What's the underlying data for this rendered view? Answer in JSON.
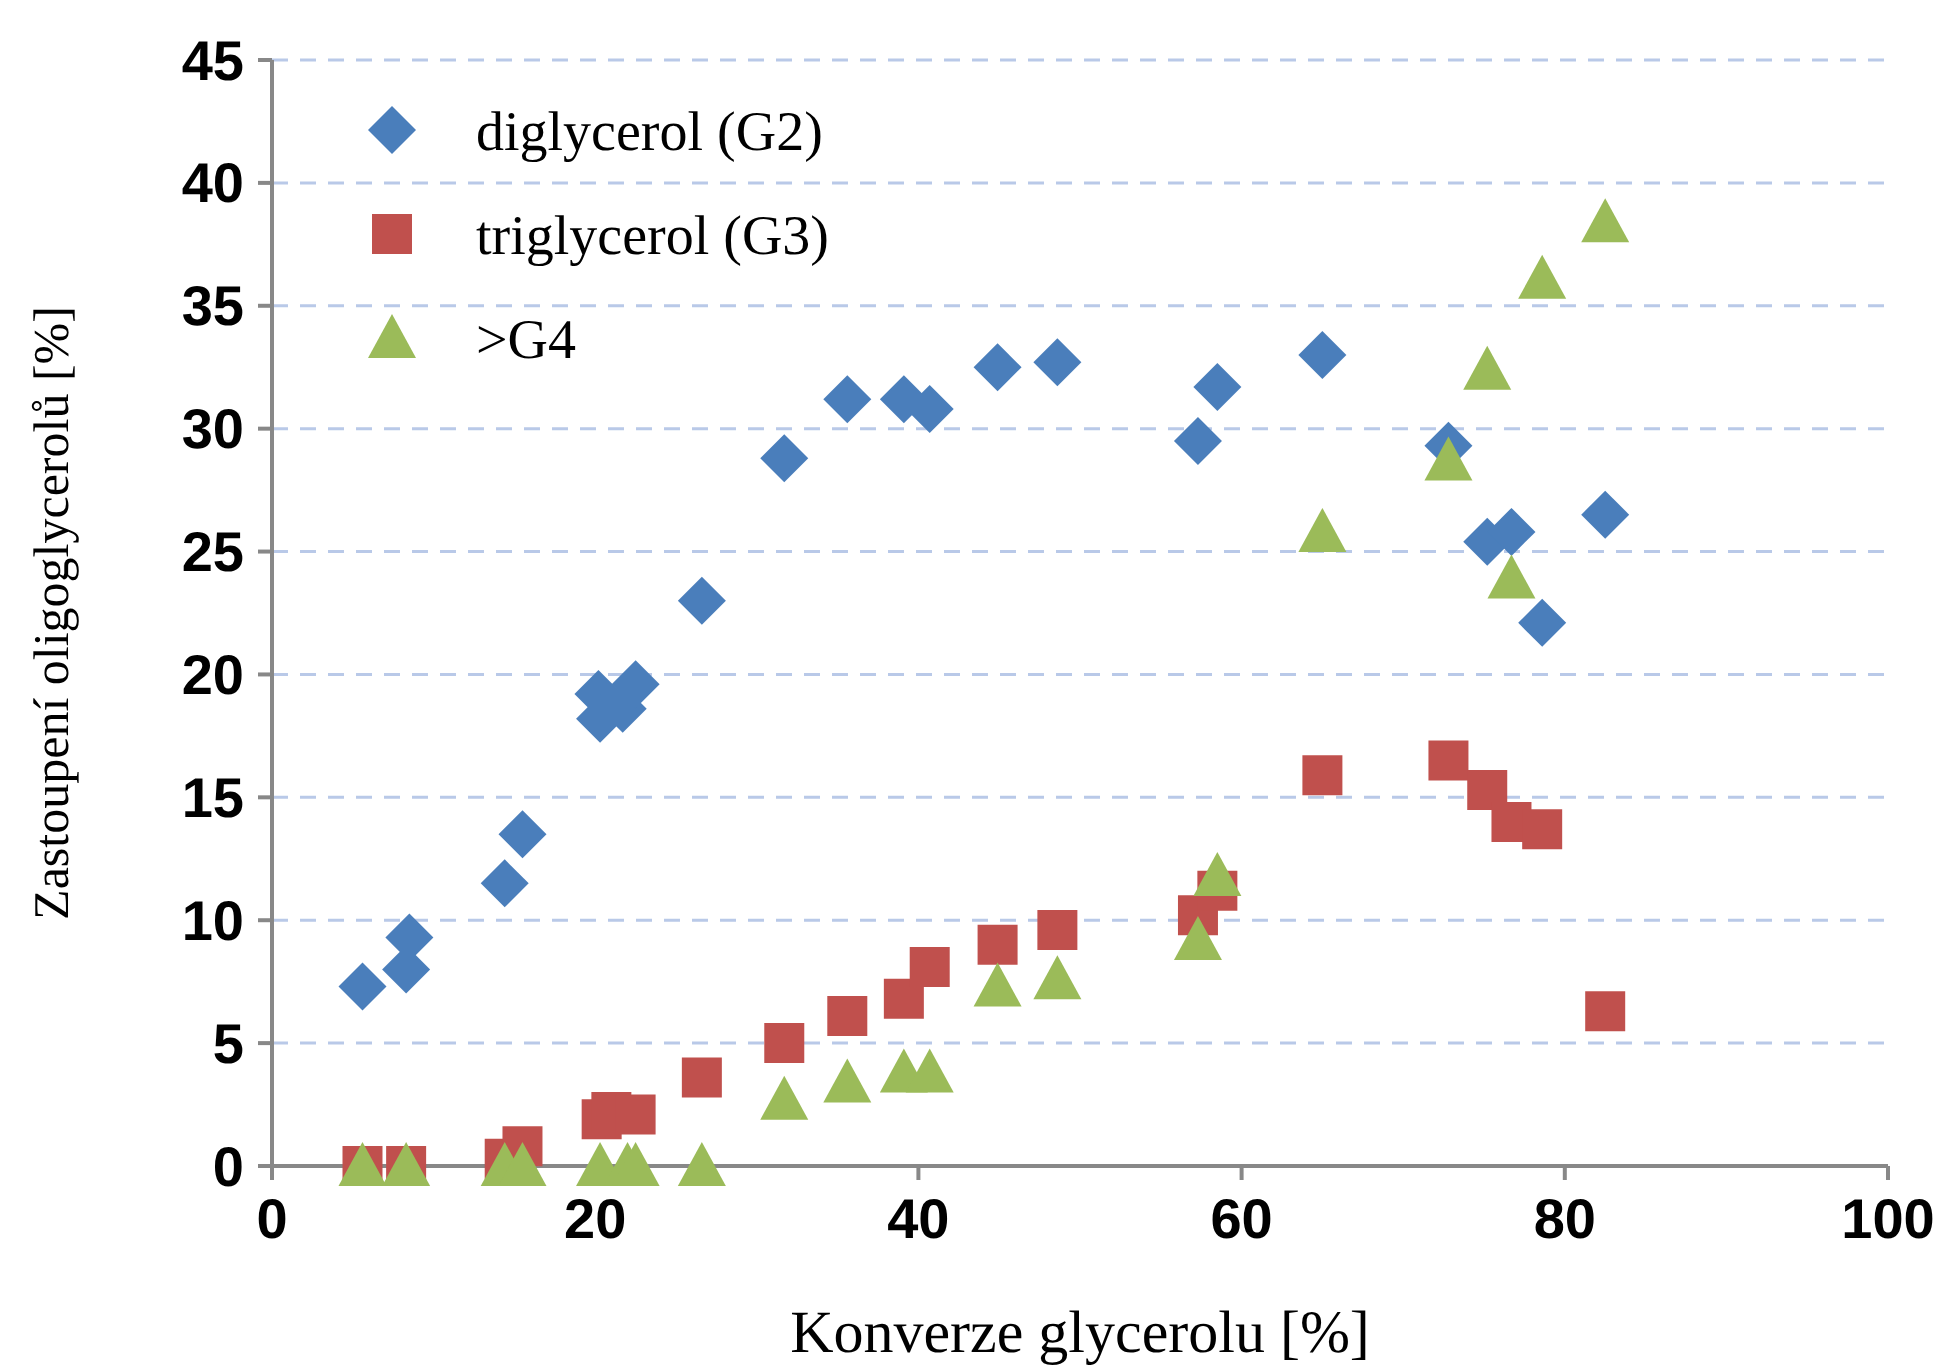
{
  "chart_data": {
    "type": "scatter",
    "xlabel": "Konverze glycerolu [%]",
    "ylabel": "Zastoupení oligoglycerolů [%]",
    "xlim": [
      0,
      100
    ],
    "xticks": [
      0,
      20,
      40,
      60,
      80,
      100
    ],
    "ylim": [
      0,
      45
    ],
    "yticks": [
      0,
      5,
      10,
      15,
      20,
      25,
      30,
      35,
      40,
      45
    ],
    "grid": "y",
    "legend": "top left",
    "series": [
      {
        "name": "diglycerol (G2)",
        "color": "#4a7ebb",
        "marker": "diamond",
        "x": [
          5.6,
          8.3,
          8.5,
          14.4,
          15.5,
          20.2,
          20.3,
          21.7,
          22.5,
          26.6,
          31.7,
          35.6,
          39.1,
          40.7,
          44.9,
          48.6,
          57.3,
          58.5,
          65.0,
          72.8,
          75.2,
          76.7,
          78.6,
          82.5
        ],
        "values": [
          7.3,
          8.0,
          9.3,
          11.5,
          13.5,
          19.2,
          18.2,
          18.6,
          19.6,
          23.0,
          28.8,
          31.2,
          31.2,
          30.8,
          32.5,
          32.7,
          29.5,
          31.7,
          33.0,
          29.3,
          25.4,
          25.8,
          22.1,
          26.5
        ]
      },
      {
        "name": "triglycerol (G3)",
        "color": "#c0504d",
        "marker": "square",
        "x": [
          5.6,
          8.3,
          14.4,
          15.5,
          20.4,
          21.0,
          22.5,
          26.6,
          31.7,
          35.6,
          39.1,
          40.7,
          44.9,
          48.6,
          57.3,
          58.5,
          65.0,
          72.8,
          75.2,
          76.7,
          78.6,
          82.5
        ],
        "values": [
          0,
          0,
          0.3,
          0.8,
          1.9,
          2.2,
          2.1,
          3.6,
          5.0,
          6.1,
          6.8,
          8.1,
          9.0,
          9.6,
          10.2,
          11.2,
          15.9,
          16.5,
          15.3,
          14.0,
          13.7,
          6.3
        ]
      },
      {
        "name": ">G4",
        "color": "#9bbb59",
        "marker": "triangle",
        "x": [
          5.6,
          8.3,
          14.4,
          15.5,
          20.3,
          22.0,
          22.5,
          26.6,
          31.7,
          35.6,
          39.1,
          40.7,
          44.9,
          48.6,
          57.3,
          58.5,
          65.0,
          72.8,
          75.2,
          76.7,
          78.6,
          82.5
        ],
        "values": [
          0,
          0,
          0,
          0,
          0,
          0,
          0,
          0,
          2.7,
          3.4,
          3.8,
          3.8,
          7.3,
          7.6,
          9.2,
          11.8,
          25.8,
          28.7,
          32.4,
          23.9,
          36.1,
          38.4
        ]
      }
    ]
  }
}
